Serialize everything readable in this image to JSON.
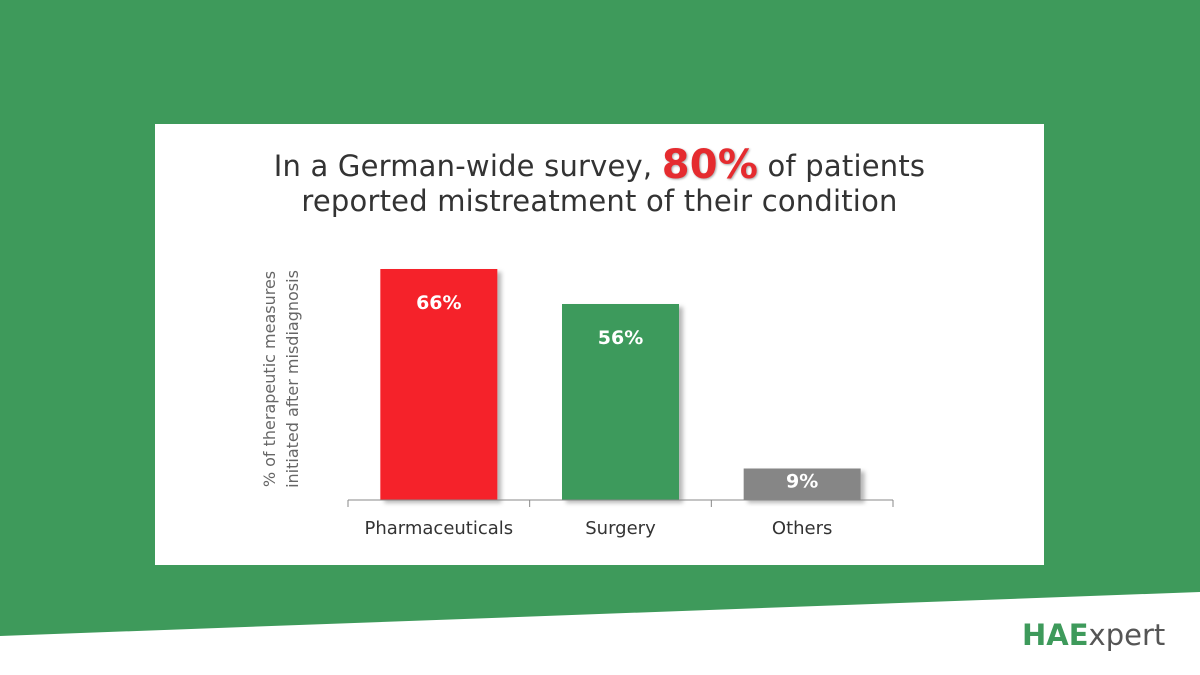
{
  "colors": {
    "background_green": "#3e9a5b",
    "highlight_red": "#e52b2f",
    "bar_red": "#f5242b",
    "bar_green": "#3e9a5b",
    "bar_gray": "#868686"
  },
  "title": {
    "prefix": "In a German-wide survey,",
    "highlight": "80%",
    "suffix": "of patients",
    "line2": "reported mistreatment of their condition"
  },
  "logo": {
    "strong": "HAE",
    "light": "xpert"
  },
  "chart_data": {
    "type": "bar",
    "title": "In a German-wide survey, 80% of patients reported mistreatment of their condition",
    "ylabel_lines": [
      "% of therapeutic measures",
      "initiated after misdiagnosis"
    ],
    "xlabel": "",
    "categories": [
      "Pharmaceuticals",
      "Surgery",
      "Others"
    ],
    "values": [
      66,
      56,
      9
    ],
    "value_labels": [
      "66%",
      "56%",
      "9%"
    ],
    "bar_colors": [
      "#f5242b",
      "#3e9a5b",
      "#868686"
    ],
    "ylim": [
      0,
      66
    ],
    "grid": false,
    "legend": "none"
  }
}
